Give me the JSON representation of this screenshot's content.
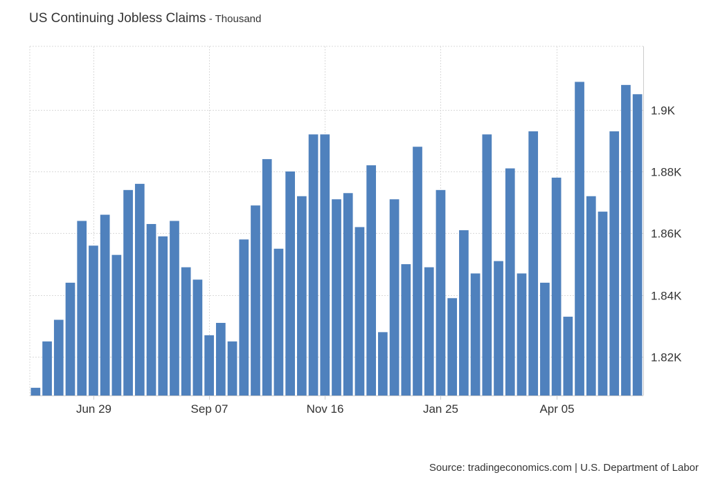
{
  "header": {
    "title": "US Continuing Jobless Claims",
    "separator": " - ",
    "subtitle": "Thousand"
  },
  "footer": {
    "source": "Source: tradingeconomics.com | U.S. Department of Labor"
  },
  "colors": {
    "bar": "#4f81bd",
    "grid": "#d9d9d9",
    "axis": "#cccccc",
    "text": "#333333"
  },
  "chart_data": {
    "type": "bar",
    "title": "US Continuing Jobless Claims",
    "subtitle": "Thousand",
    "xlabel": "",
    "ylabel": "",
    "unit": "thousand",
    "ylim": [
      1.8075,
      1.9205
    ],
    "y_ticks": [
      1.82,
      1.84,
      1.86,
      1.88,
      1.9
    ],
    "y_tick_labels": [
      "1.82K",
      "1.84K",
      "1.86K",
      "1.88K",
      "1.9K"
    ],
    "y_axis_side": "right",
    "x_tick_labels": [
      {
        "label": "Jun 29",
        "index": 5
      },
      {
        "label": "Sep 07",
        "index": 15
      },
      {
        "label": "Nov 16",
        "index": 25
      },
      {
        "label": "Jan 25",
        "index": 35
      },
      {
        "label": "Apr 05",
        "index": 45
      }
    ],
    "grid": true,
    "values": [
      1.81,
      1.825,
      1.832,
      1.844,
      1.864,
      1.856,
      1.866,
      1.853,
      1.874,
      1.876,
      1.863,
      1.859,
      1.864,
      1.849,
      1.845,
      1.827,
      1.831,
      1.825,
      1.858,
      1.869,
      1.884,
      1.855,
      1.88,
      1.872,
      1.892,
      1.892,
      1.871,
      1.873,
      1.862,
      1.882,
      1.828,
      1.871,
      1.85,
      1.888,
      1.849,
      1.874,
      1.839,
      1.861,
      1.847,
      1.892,
      1.851,
      1.881,
      1.847,
      1.893,
      1.844,
      1.878,
      1.833,
      1.909,
      1.872,
      1.867,
      1.893,
      1.908,
      1.905
    ]
  }
}
